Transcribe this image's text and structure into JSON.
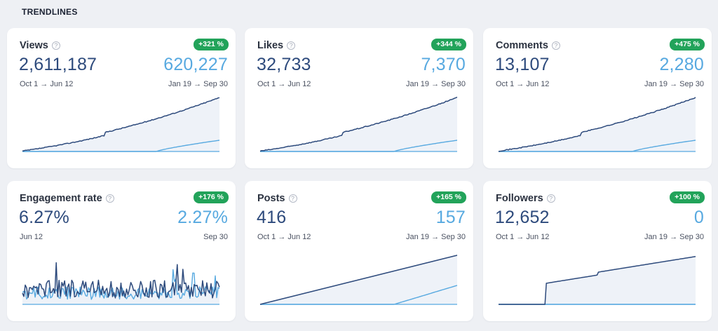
{
  "section_title": "TRENDLINES",
  "colors": {
    "current": "#2d4a7c",
    "previous": "#57a9e0",
    "badge": "#22a35a",
    "fill": "#eef2f8"
  },
  "cards": [
    {
      "title": "Views",
      "help_icon": "question-circle-icon",
      "change": "+321 %",
      "current_value": "2,611,187",
      "previous_value": "620,227",
      "current_range": "Oct 1 → Jun 12",
      "previous_range": "Jan 19 → Sep 30",
      "shape": "cumulative"
    },
    {
      "title": "Likes",
      "help_icon": "question-circle-icon",
      "change": "+344 %",
      "current_value": "32,733",
      "previous_value": "7,370",
      "current_range": "Oct 1 → Jun 12",
      "previous_range": "Jan 19 → Sep 30",
      "shape": "cumulative"
    },
    {
      "title": "Comments",
      "help_icon": "question-circle-icon",
      "change": "+475 %",
      "current_value": "13,107",
      "previous_value": "2,280",
      "current_range": "Oct 1 → Jun 12",
      "previous_range": "Jan 19 → Sep 30",
      "shape": "cumulative"
    },
    {
      "title": "Engagement rate",
      "help_icon": "question-circle-icon",
      "change": "+176 %",
      "current_value": "6.27%",
      "previous_value": "2.27%",
      "current_range": "Jun 12",
      "previous_range": "Sep 30",
      "shape": "noisy"
    },
    {
      "title": "Posts",
      "help_icon": "question-circle-icon",
      "change": "+165 %",
      "current_value": "416",
      "previous_value": "157",
      "current_range": "Oct 1 → Jun 12",
      "previous_range": "Jan 19 → Sep 30",
      "shape": "linear"
    },
    {
      "title": "Followers",
      "help_icon": "question-circle-icon",
      "change": "+100 %",
      "current_value": "12,652",
      "previous_value": "0",
      "current_range": "Oct 1 → Jun 12",
      "previous_range": "Jan 19 → Sep 30",
      "shape": "step"
    }
  ]
}
